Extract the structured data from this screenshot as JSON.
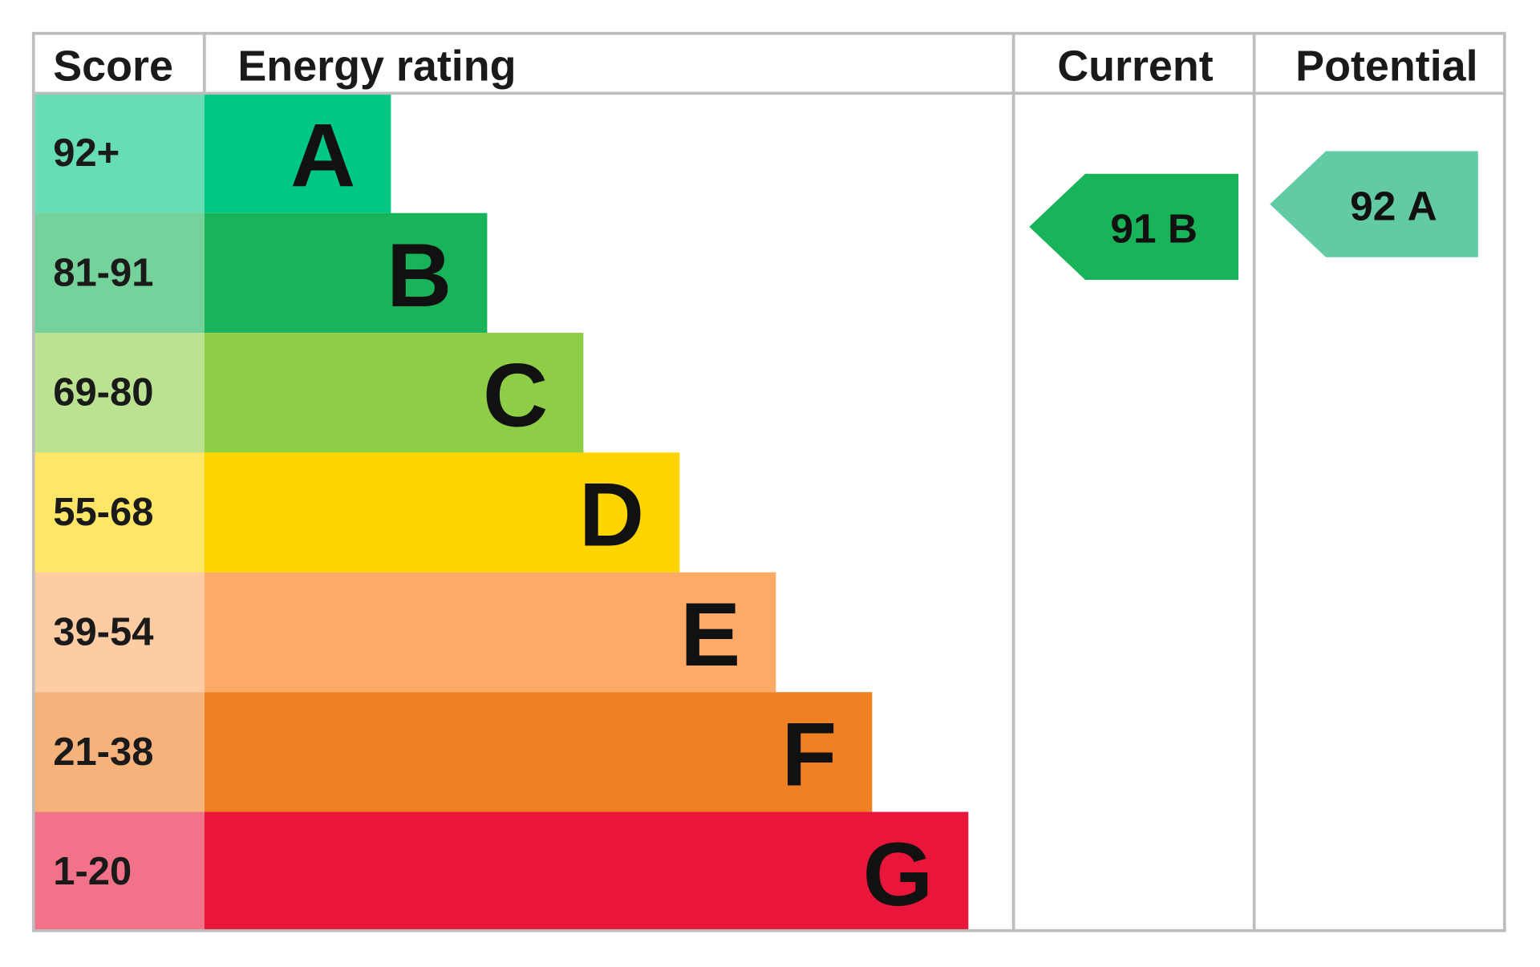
{
  "headers": [
    "Score",
    "Energy rating",
    "Current",
    "Potential"
  ],
  "bands": [
    {
      "score": "92+",
      "letter": "A",
      "color": "#00c781"
    },
    {
      "score": "81-91",
      "letter": "B",
      "color": "#19b459"
    },
    {
      "score": "69-80",
      "letter": "C",
      "color": "#8dce46"
    },
    {
      "score": "55-68",
      "letter": "D",
      "color": "#ffd500"
    },
    {
      "score": "39-54",
      "letter": "E",
      "color": "#fcaa65"
    },
    {
      "score": "21-38",
      "letter": "F",
      "color": "#ef8023"
    },
    {
      "score": "1-20",
      "letter": "G",
      "color": "#e9153b"
    }
  ],
  "current": {
    "score": "91",
    "letter": "B",
    "color": "#19b459"
  },
  "potential": {
    "score": "92",
    "letter": "A",
    "color": "#63cba4"
  }
}
